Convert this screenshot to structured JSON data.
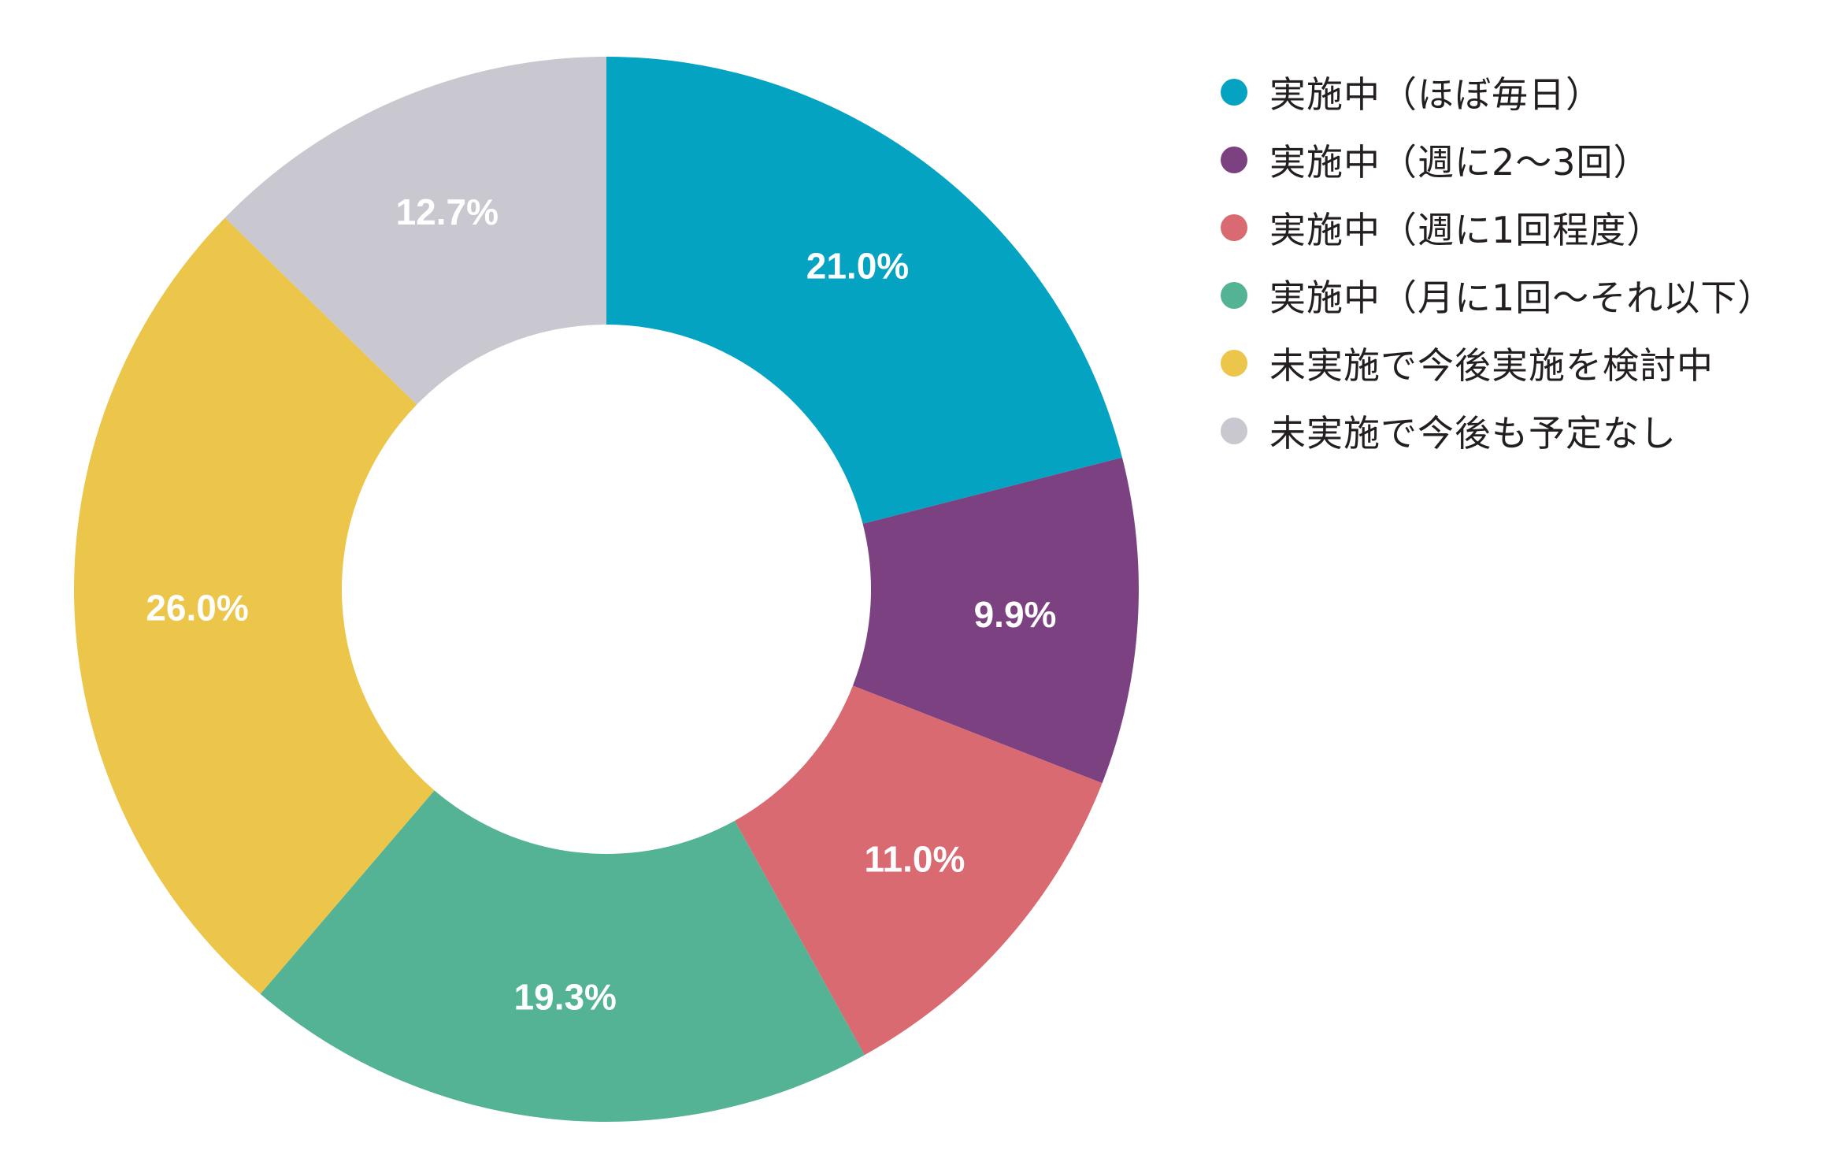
{
  "chart_data": {
    "type": "pie",
    "variant": "donut",
    "title": "",
    "legend_position": "right",
    "series": [
      {
        "name": "実施中（ほぼ毎日）",
        "value": 21.0,
        "label": "21.0%",
        "color": "#05a3c2"
      },
      {
        "name": "実施中（週に2〜3回）",
        "value": 9.9,
        "label": "9.9%",
        "color": "#7c4181"
      },
      {
        "name": "実施中（週に1回程度）",
        "value": 11.0,
        "label": "11.0%",
        "color": "#d96a71"
      },
      {
        "name": "実施中（月に1回〜それ以下）",
        "value": 19.3,
        "label": "19.3%",
        "color": "#54b295"
      },
      {
        "name": "未実施で今後実施を検討中",
        "value": 26.0,
        "label": "26.0%",
        "color": "#ecc54b"
      },
      {
        "name": "未実施で今後も予定なし",
        "value": 12.7,
        "label": "12.7%",
        "color": "#c9c7cf"
      }
    ]
  }
}
